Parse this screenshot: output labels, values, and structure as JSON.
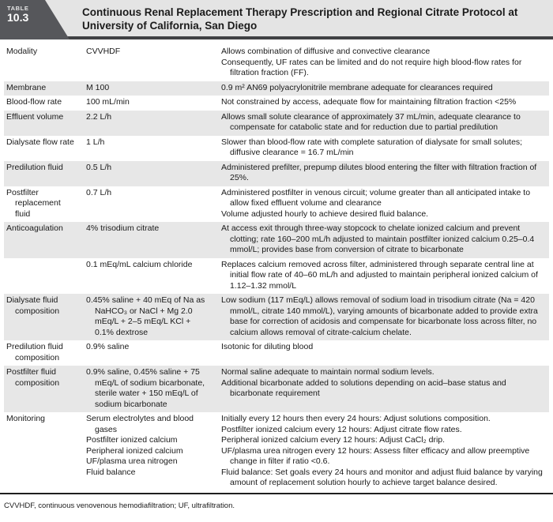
{
  "header": {
    "badge_label": "TABLE",
    "badge_number": "10.3",
    "title": "Continuous Renal Replacement Therapy Prescription and Regional Citrate Protocol at University of California, San Diego"
  },
  "colors": {
    "badge_background": "#56575b",
    "title_band_background": "#e4e4e4",
    "shaded_row_background": "#e7e7e7",
    "header_rule": "#404144",
    "text": "#1a1a1a"
  },
  "rows": [
    {
      "shaded": false,
      "parameter": "Modality",
      "value": [
        "CVVHDF"
      ],
      "rationale": [
        "Allows combination of diffusive and convective clearance",
        "Consequently, UF rates can be limited and do not require high blood-flow rates for filtration fraction (FF)."
      ]
    },
    {
      "shaded": true,
      "parameter": "Membrane",
      "value": [
        "M 100"
      ],
      "rationale": [
        "0.9 m² AN69 polyacrylonitrile membrane adequate for clearances required"
      ]
    },
    {
      "shaded": false,
      "parameter": "Blood-flow rate",
      "value": [
        "100 mL/min"
      ],
      "rationale": [
        "Not constrained by access, adequate flow for maintaining filtration fraction <25%"
      ]
    },
    {
      "shaded": true,
      "parameter": "Effluent volume",
      "value": [
        "2.2 L/h"
      ],
      "rationale": [
        "Allows small solute clearance of approximately 37 mL/min, adequate clearance to compensate for catabolic state and for reduction due to partial predilution"
      ]
    },
    {
      "shaded": false,
      "parameter": "Dialysate flow rate",
      "value": [
        "1 L/h"
      ],
      "rationale": [
        "Slower than blood-flow rate with complete saturation of dialysate for small solutes; diffusive clearance = 16.7 mL/min"
      ]
    },
    {
      "shaded": true,
      "parameter": "Predilution fluid",
      "value": [
        "0.5 L/h"
      ],
      "rationale": [
        "Administered prefilter, prepump dilutes blood entering the filter with filtration fraction of 25%."
      ]
    },
    {
      "shaded": false,
      "parameter": "Postfilter replacement fluid",
      "value": [
        "0.7 L/h"
      ],
      "rationale": [
        "Administered postfilter in venous circuit; volume greater than all anticipated intake to allow fixed effluent volume and clearance",
        "Volume adjusted hourly to achieve desired fluid balance."
      ]
    },
    {
      "shaded": true,
      "parameter": "Anticoagulation",
      "value": [
        "4% trisodium citrate"
      ],
      "rationale": [
        "At access exit through three-way stopcock to chelate ionized calcium and prevent clotting; rate 160–200 mL/h adjusted to maintain postfilter ionized calcium 0.25–0.4 mmol/L; provides base from conversion of citrate to bicarbonate"
      ]
    },
    {
      "shaded": false,
      "parameter": "",
      "value": [
        "0.1 mEq/mL calcium chloride"
      ],
      "rationale": [
        "Replaces calcium removed across filter, administered through separate central line at initial flow rate of 40–60 mL/h and adjusted to maintain peripheral ionized calcium of 1.12–1.32 mmol/L"
      ]
    },
    {
      "shaded": true,
      "parameter": "Dialysate fluid composition",
      "value": [
        "0.45% saline + 40 mEq of Na as NaHCO₃ or NaCl + Mg 2.0 mEq/L + 2–5 mEq/L KCl + 0.1% dextrose"
      ],
      "rationale": [
        "Low sodium (117 mEq/L) allows removal of sodium load in trisodium citrate (Na = 420 mmol/L, citrate 140 mmol/L), varying amounts of bicarbonate added to provide extra base for correction of acidosis and compensate for bicarbonate loss across filter, no calcium allows removal of citrate-calcium chelate."
      ]
    },
    {
      "shaded": false,
      "parameter": "Predilution fluid composition",
      "value": [
        "0.9% saline"
      ],
      "rationale": [
        "Isotonic for diluting blood"
      ]
    },
    {
      "shaded": true,
      "parameter": "Postfilter fluid composition",
      "value": [
        "0.9% saline, 0.45% saline + 75 mEq/L of sodium bicarbonate, sterile water + 150 mEq/L of sodium bicarbonate"
      ],
      "rationale": [
        "Normal saline adequate to maintain normal sodium levels.",
        "Additional bicarbonate added to solutions depending on acid–base status and bicarbonate requirement"
      ]
    },
    {
      "shaded": false,
      "parameter": "Monitoring",
      "value": [
        "Serum electrolytes and blood gases",
        "Postfilter ionized calcium",
        "Peripheral ionized calcium",
        "UF/plasma urea nitrogen",
        "Fluid balance"
      ],
      "rationale": [
        "Initially every 12 hours then every 24 hours: Adjust solutions composition.",
        "Postfilter ionized calcium every 12 hours: Adjust citrate flow rates.",
        "Peripheral ionized calcium every 12 hours: Adjust CaCl₂ drip.",
        "UF/plasma urea nitrogen every 12 hours: Assess filter efficacy and allow preemptive change in filter if ratio <0.6.",
        "Fluid balance: Set goals every 24 hours and monitor and adjust fluid balance by varying amount of replacement solution hourly to achieve target balance desired."
      ]
    }
  ],
  "footnote": "CVVHDF, continuous venovenous hemodiafiltration; UF, ultrafiltration."
}
